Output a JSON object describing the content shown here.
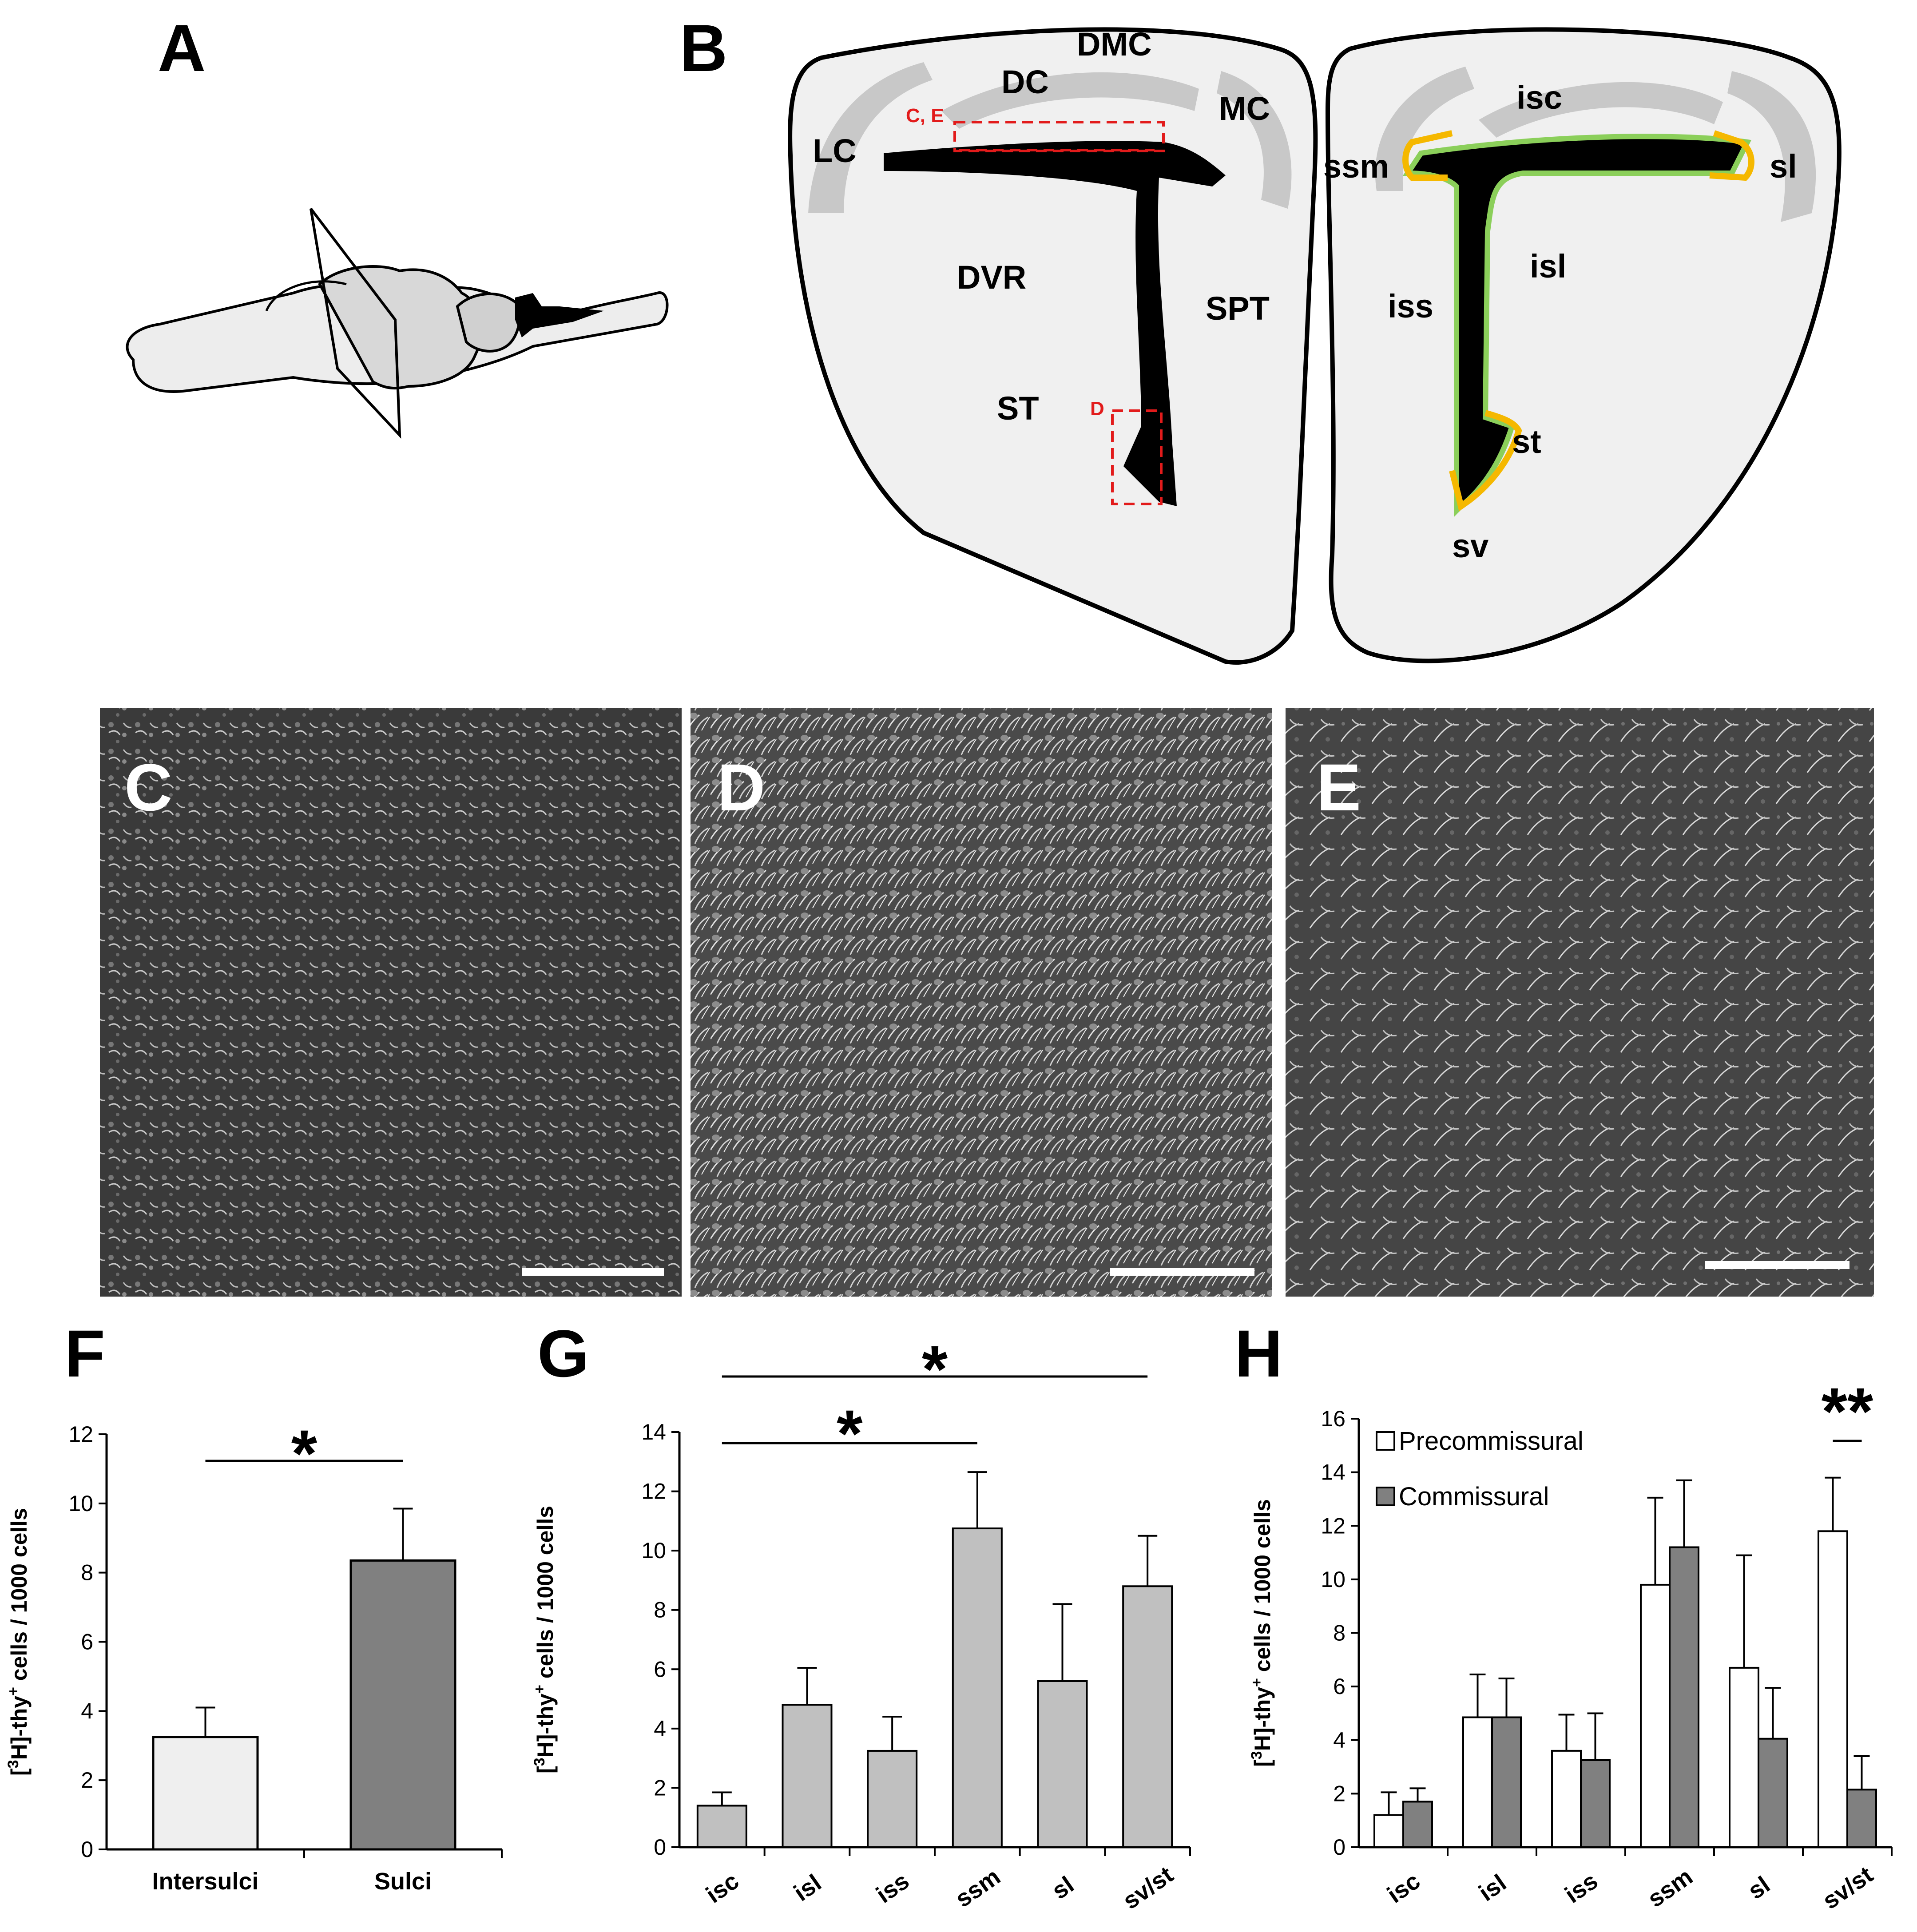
{
  "panels": {
    "a": "A",
    "b": "B",
    "c": "C",
    "d": "D",
    "e": "E",
    "f": "F",
    "g": "G",
    "h": "H"
  },
  "diagram_b": {
    "left_regions": [
      "DMC",
      "DC",
      "MC",
      "LC",
      "DVR",
      "SPT",
      "ST"
    ],
    "box_labels": [
      "C, E",
      "D"
    ],
    "right_regions": [
      "isc",
      "ssm",
      "sl",
      "isl",
      "iss",
      "st",
      "sv"
    ],
    "colors": {
      "sulci": "#f5b800",
      "intersulci": "#8bcf5a",
      "ventricle": "#000000",
      "cortex": "#c8c8c8",
      "brain": "#f0f0f0"
    }
  },
  "chart_data": [
    {
      "type": "bar",
      "panel": "F",
      "ylabel": "[3H]-thy+ cells / 1000 cells",
      "ylim": [
        0,
        12
      ],
      "yticks": [
        0,
        2,
        4,
        6,
        8,
        10,
        12
      ],
      "categories": [
        "Intersulci",
        "Sulci"
      ],
      "values": [
        3.25,
        8.35
      ],
      "errors": [
        0.85,
        1.5
      ],
      "colors": [
        "#efefef",
        "#808080"
      ],
      "significance": "*"
    },
    {
      "type": "bar",
      "panel": "G",
      "ylabel": "[3H]-thy+ cells / 1000 cells",
      "ylim": [
        0,
        14
      ],
      "yticks": [
        0,
        2,
        4,
        6,
        8,
        10,
        12,
        14
      ],
      "categories": [
        "isc",
        "isl",
        "iss",
        "ssm",
        "sl",
        "sv/st"
      ],
      "values": [
        1.4,
        4.8,
        3.25,
        10.75,
        5.6,
        8.8
      ],
      "errors": [
        0.45,
        1.25,
        1.15,
        1.9,
        2.6,
        1.7
      ],
      "color": "#c0c0c0",
      "significance": [
        "*",
        "*"
      ]
    },
    {
      "type": "bar",
      "panel": "H",
      "ylabel": "[3H]-thy+ cells / 1000 cells",
      "ylim": [
        0,
        16
      ],
      "yticks": [
        0,
        2,
        4,
        6,
        8,
        10,
        12,
        14,
        16
      ],
      "categories": [
        "isc",
        "isl",
        "iss",
        "ssm",
        "sl",
        "sv/st"
      ],
      "series": [
        {
          "name": "Precommissural",
          "color": "#ffffff",
          "values": [
            1.2,
            4.85,
            3.6,
            9.8,
            6.7,
            11.8
          ],
          "errors": [
            0.85,
            1.6,
            1.35,
            3.25,
            4.2,
            2.0
          ]
        },
        {
          "name": "Commissural",
          "color": "#808080",
          "values": [
            1.7,
            4.85,
            3.25,
            11.2,
            4.05,
            2.15
          ],
          "errors": [
            0.5,
            1.45,
            1.75,
            2.5,
            1.9,
            1.25
          ]
        }
      ],
      "significance": "**"
    }
  ]
}
